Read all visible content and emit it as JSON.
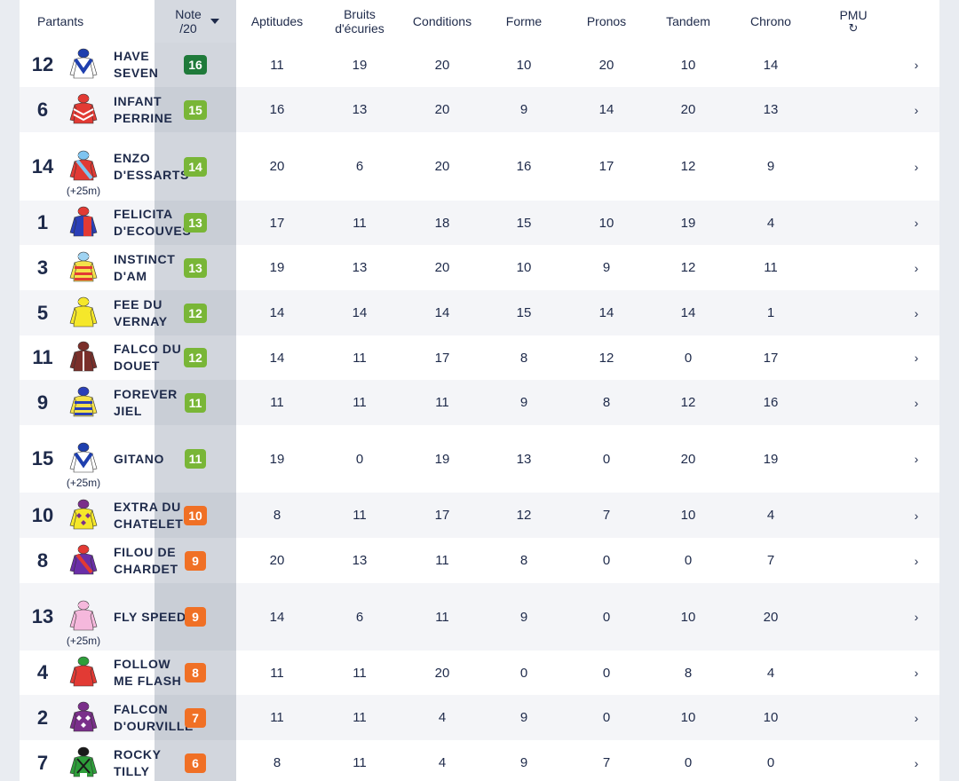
{
  "columns": {
    "partants": "Partants",
    "note_line1": "Note",
    "note_line2": "/20",
    "aptitudes": "Aptitudes",
    "bruits_line1": "Bruits",
    "bruits_line2": "d'écuries",
    "conditions": "Conditions",
    "forme": "Forme",
    "pronos": "Pronos",
    "tandem": "Tandem",
    "chrono": "Chrono",
    "pmu": "PMU",
    "pmu_icon": "↻"
  },
  "colors": {
    "dark_green": "#1f7a3a",
    "green": "#79b637",
    "orange": "#f07025",
    "text": "#1e2a4a"
  },
  "runners": [
    {
      "num": "12",
      "name": "HAVE SEVEN",
      "handicap": "",
      "note": "16",
      "tier": "dark_green",
      "silk": {
        "body": "#ffffff",
        "accent": "#1e3fae",
        "pattern": "v",
        "cap": "#1e3fae"
      },
      "aptitudes": "11",
      "bruits": "19",
      "conditions": "20",
      "forme": "10",
      "pronos": "20",
      "tandem": "10",
      "chrono": "14",
      "chevron": "›"
    },
    {
      "num": "6",
      "name": "INFANT PERRINE",
      "handicap": "",
      "note": "15",
      "tier": "green",
      "silk": {
        "body": "#e23a34",
        "accent": "#ffffff",
        "pattern": "chevrons",
        "cap": "#e23a34"
      },
      "aptitudes": "16",
      "bruits": "13",
      "conditions": "20",
      "forme": "9",
      "pronos": "14",
      "tandem": "20",
      "chrono": "13",
      "chevron": "›"
    },
    {
      "num": "14",
      "name": "ENZO D'ESSARTS",
      "handicap": "(+25m)",
      "note": "14",
      "tier": "green",
      "silk": {
        "body": "#e23a34",
        "accent": "#7ec4f0",
        "pattern": "sash",
        "cap": "#7ec4f0"
      },
      "aptitudes": "20",
      "bruits": "6",
      "conditions": "20",
      "forme": "16",
      "pronos": "17",
      "tandem": "12",
      "chrono": "9",
      "chevron": "›"
    },
    {
      "num": "1",
      "name": "FELICITA D'ECOUVES",
      "handicap": "",
      "note": "13",
      "tier": "green",
      "silk": {
        "body": "#2a3fb8",
        "accent": "#e23a34",
        "pattern": "halves",
        "cap": "#e23a34"
      },
      "aptitudes": "17",
      "bruits": "11",
      "conditions": "18",
      "forme": "15",
      "pronos": "10",
      "tandem": "19",
      "chrono": "4",
      "chevron": "›"
    },
    {
      "num": "3",
      "name": "INSTINCT D'AM",
      "handicap": "",
      "note": "13",
      "tier": "green",
      "silk": {
        "body": "#f4e14a",
        "accent": "#e23a34",
        "pattern": "hoops",
        "cap": "#9fd3f2"
      },
      "aptitudes": "19",
      "bruits": "13",
      "conditions": "20",
      "forme": "10",
      "pronos": "9",
      "tandem": "12",
      "chrono": "11",
      "chevron": "›"
    },
    {
      "num": "5",
      "name": "FEE DU VERNAY",
      "handicap": "",
      "note": "12",
      "tier": "green",
      "silk": {
        "body": "#f5e72a",
        "accent": "#f5e72a",
        "pattern": "plain",
        "cap": "#f5e72a"
      },
      "aptitudes": "14",
      "bruits": "14",
      "conditions": "14",
      "forme": "15",
      "pronos": "14",
      "tandem": "14",
      "chrono": "1",
      "chevron": "›"
    },
    {
      "num": "11",
      "name": "FALCO DU DOUET",
      "handicap": "",
      "note": "12",
      "tier": "green",
      "silk": {
        "body": "#7a2f2a",
        "accent": "#ffffff",
        "pattern": "stripe",
        "cap": "#7a2f2a"
      },
      "aptitudes": "14",
      "bruits": "11",
      "conditions": "17",
      "forme": "8",
      "pronos": "12",
      "tandem": "0",
      "chrono": "17",
      "chevron": "›"
    },
    {
      "num": "9",
      "name": "FOREVER JIEL",
      "handicap": "",
      "note": "11",
      "tier": "green",
      "silk": {
        "body": "#f4e14a",
        "accent": "#2a3fb8",
        "pattern": "hoops",
        "cap": "#2a3fb8"
      },
      "aptitudes": "11",
      "bruits": "11",
      "conditions": "11",
      "forme": "9",
      "pronos": "8",
      "tandem": "12",
      "chrono": "16",
      "chevron": "›"
    },
    {
      "num": "15",
      "name": "GITANO",
      "handicap": "(+25m)",
      "note": "11",
      "tier": "green",
      "silk": {
        "body": "#ffffff",
        "accent": "#1e3fae",
        "pattern": "v",
        "cap": "#1e3fae"
      },
      "aptitudes": "19",
      "bruits": "0",
      "conditions": "19",
      "forme": "13",
      "pronos": "0",
      "tandem": "20",
      "chrono": "19",
      "chevron": "›"
    },
    {
      "num": "10",
      "name": "EXTRA DU CHATELET",
      "handicap": "",
      "note": "10",
      "tier": "orange",
      "silk": {
        "body": "#f5e72a",
        "accent": "#7a2f8a",
        "pattern": "diamonds",
        "cap": "#7a2f8a"
      },
      "aptitudes": "8",
      "bruits": "11",
      "conditions": "17",
      "forme": "12",
      "pronos": "7",
      "tandem": "10",
      "chrono": "4",
      "chevron": "›"
    },
    {
      "num": "8",
      "name": "FILOU DE CHARDET",
      "handicap": "",
      "note": "9",
      "tier": "orange",
      "silk": {
        "body": "#6a2fa8",
        "accent": "#e23a34",
        "pattern": "sash",
        "cap": "#e23a34"
      },
      "aptitudes": "20",
      "bruits": "13",
      "conditions": "11",
      "forme": "8",
      "pronos": "0",
      "tandem": "0",
      "chrono": "7",
      "chevron": "›"
    },
    {
      "num": "13",
      "name": "FLY SPEED",
      "handicap": "(+25m)",
      "note": "9",
      "tier": "orange",
      "silk": {
        "body": "#f5b8dc",
        "accent": "#f5b8dc",
        "pattern": "plain",
        "cap": "#f5b8dc"
      },
      "aptitudes": "14",
      "bruits": "6",
      "conditions": "11",
      "forme": "9",
      "pronos": "0",
      "tandem": "10",
      "chrono": "20",
      "chevron": "›"
    },
    {
      "num": "4",
      "name": "FOLLOW ME FLASH",
      "handicap": "",
      "note": "8",
      "tier": "orange",
      "silk": {
        "body": "#e23a34",
        "accent": "#e23a34",
        "pattern": "plain",
        "cap": "#2e9e3a"
      },
      "aptitudes": "11",
      "bruits": "11",
      "conditions": "20",
      "forme": "0",
      "pronos": "0",
      "tandem": "8",
      "chrono": "4",
      "chevron": "›"
    },
    {
      "num": "2",
      "name": "FALCON D'OURVILLE",
      "handicap": "",
      "note": "7",
      "tier": "orange",
      "silk": {
        "body": "#7a2f8a",
        "accent": "#ffffff",
        "pattern": "diamonds",
        "cap": "#7a2f8a"
      },
      "aptitudes": "11",
      "bruits": "11",
      "conditions": "4",
      "forme": "9",
      "pronos": "0",
      "tandem": "10",
      "chrono": "10",
      "chevron": "›"
    },
    {
      "num": "7",
      "name": "ROCKY TILLY",
      "handicap": "",
      "note": "6",
      "tier": "orange",
      "silk": {
        "body": "#2e9e3a",
        "accent": "#1a1a1a",
        "pattern": "cross",
        "cap": "#1a1a1a"
      },
      "aptitudes": "8",
      "bruits": "11",
      "conditions": "4",
      "forme": "9",
      "pronos": "7",
      "tandem": "0",
      "chrono": "0",
      "chevron": "›"
    }
  ]
}
